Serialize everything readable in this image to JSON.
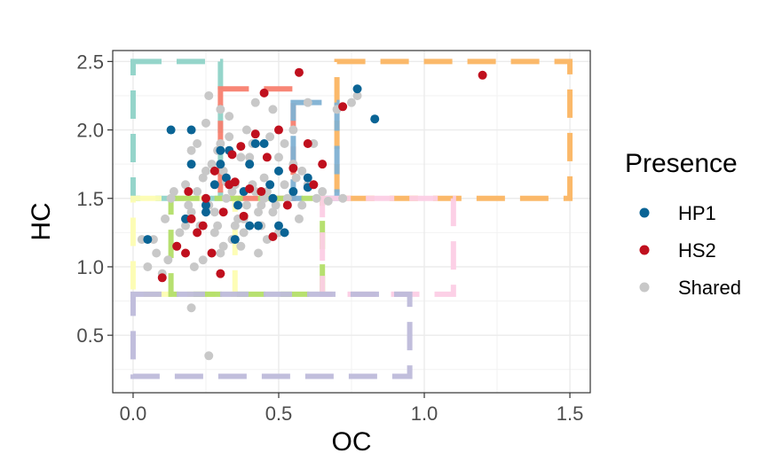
{
  "chart_data": {
    "type": "scatter",
    "xlabel": "OC",
    "ylabel": "HC",
    "xlim": [
      -0.07,
      1.57
    ],
    "ylim": [
      0.08,
      2.58
    ],
    "x_ticks": [
      0.0,
      0.5,
      1.0,
      1.5
    ],
    "x_tick_labels": [
      "0.0",
      "0.5",
      "1.0",
      "1.5"
    ],
    "y_ticks": [
      0.5,
      1.0,
      1.5,
      2.0,
      2.5
    ],
    "y_tick_labels": [
      "0.5",
      "1.0",
      "1.5",
      "2.0",
      "2.5"
    ],
    "grid": true,
    "legend": {
      "title": "Presence",
      "position": "right",
      "items": [
        {
          "label": "HP1",
          "color": "#0a6495"
        },
        {
          "label": "HS2",
          "color": "#c0101e"
        },
        {
          "label": "Shared",
          "color": "#c8c8c8"
        }
      ]
    },
    "series": [
      {
        "name": "Shared",
        "color": "#c8c8c8",
        "x": [
          0.26,
          0.12,
          0.2,
          0.03,
          0.18,
          0.26,
          0.35,
          0.4,
          0.45,
          0.3,
          0.38,
          0.28,
          0.22,
          0.5,
          0.55,
          0.48,
          0.42,
          0.33,
          0.25,
          0.6,
          0.62,
          0.58,
          0.7,
          0.75,
          0.77,
          0.65,
          0.05,
          0.08,
          0.1,
          0.15,
          0.2,
          0.24,
          0.36,
          0.44,
          0.52,
          0.47,
          0.31,
          0.29,
          0.39,
          0.34,
          0.27,
          0.21,
          0.16,
          0.43,
          0.53,
          0.57,
          0.46,
          0.41,
          0.37,
          0.32,
          0.23,
          0.19,
          0.14,
          0.11,
          0.07,
          0.28,
          0.35,
          0.42,
          0.49,
          0.56,
          0.3,
          0.26,
          0.33,
          0.4,
          0.45,
          0.38,
          0.31,
          0.24,
          0.18,
          0.13,
          0.36,
          0.44,
          0.5,
          0.55,
          0.6,
          0.48,
          0.41,
          0.34,
          0.27,
          0.22,
          0.29,
          0.37,
          0.43,
          0.39,
          0.32,
          0.25,
          0.2,
          0.46,
          0.52,
          0.58,
          0.63,
          0.67,
          0.72,
          0.3,
          0.35
        ],
        "y": [
          0.35,
          1.05,
          0.7,
          1.2,
          1.3,
          1.45,
          1.6,
          1.75,
          1.5,
          1.9,
          1.35,
          1.25,
          1.55,
          1.8,
          2.0,
          2.15,
          2.2,
          2.1,
          2.05,
          2.2,
          1.9,
          1.7,
          2.15,
          2.2,
          2.25,
          1.55,
          1.0,
          1.1,
          0.95,
          1.15,
          1.4,
          1.65,
          1.45,
          1.3,
          1.6,
          1.95,
          1.7,
          1.85,
          2.0,
          1.2,
          1.1,
          1.0,
          1.25,
          1.4,
          1.5,
          1.35,
          1.2,
          1.6,
          1.8,
          1.5,
          1.3,
          1.45,
          1.55,
          1.35,
          1.2,
          1.4,
          1.3,
          1.55,
          1.45,
          1.65,
          2.15,
          2.25,
          1.95,
          1.8,
          1.65,
          1.25,
          1.15,
          1.05,
          1.6,
          1.5,
          1.35,
          1.45,
          1.25,
          1.75,
          1.6,
          1.4,
          1.9,
          1.55,
          1.75,
          1.9,
          1.3,
          1.15,
          1.1,
          1.45,
          1.62,
          1.7,
          1.85,
          1.55,
          1.9,
          1.45,
          1.5,
          1.48,
          1.5,
          1.1,
          1.2
        ]
      },
      {
        "name": "HP1",
        "color": "#0a6495",
        "x": [
          0.05,
          0.13,
          0.2,
          0.25,
          0.3,
          0.35,
          0.4,
          0.45,
          0.5,
          0.55,
          0.6,
          0.77,
          0.83,
          0.28,
          0.33,
          0.38,
          0.43,
          0.48,
          0.18,
          0.25,
          0.32,
          0.4,
          0.52,
          0.2,
          0.36,
          0.47,
          0.3,
          0.42,
          0.5,
          0.6
        ],
        "y": [
          1.2,
          2.0,
          2.0,
          1.4,
          1.75,
          1.2,
          1.3,
          1.9,
          1.7,
          1.55,
          1.65,
          2.3,
          2.08,
          1.6,
          1.85,
          1.55,
          1.3,
          1.5,
          1.35,
          1.45,
          1.65,
          1.75,
          1.25,
          1.75,
          1.45,
          1.6,
          1.85,
          1.9,
          1.3,
          1.58
        ]
      },
      {
        "name": "HS2",
        "color": "#c0101e",
        "x": [
          0.57,
          0.72,
          1.2,
          0.45,
          0.34,
          0.4,
          0.5,
          0.6,
          0.65,
          0.25,
          0.2,
          0.15,
          0.1,
          0.3,
          0.35,
          0.44,
          0.53,
          0.28,
          0.22,
          0.18,
          0.38,
          0.46,
          0.62,
          0.33,
          0.27,
          0.48,
          0.42,
          0.55,
          0.24,
          0.37,
          0.31,
          0.19
        ],
        "y": [
          2.42,
          2.17,
          2.4,
          2.27,
          1.82,
          1.57,
          2.0,
          1.9,
          1.75,
          1.5,
          1.35,
          1.15,
          0.92,
          0.95,
          1.62,
          1.55,
          1.45,
          1.7,
          1.25,
          1.1,
          1.37,
          1.8,
          1.6,
          1.6,
          1.1,
          1.22,
          1.97,
          1.72,
          1.3,
          1.88,
          1.4,
          1.55
        ]
      }
    ],
    "regions": [
      {
        "x0": 0.0,
        "x1": 0.3,
        "y0": 1.5,
        "y1": 2.5,
        "color": "#8fd3c7"
      },
      {
        "x0": 0.7,
        "x1": 1.5,
        "y0": 1.5,
        "y1": 2.5,
        "color": "#fbb562"
      },
      {
        "x0": 0.3,
        "x1": 0.55,
        "y0": 1.5,
        "y1": 2.3,
        "color": "#f8806f"
      },
      {
        "x0": 0.55,
        "x1": 0.7,
        "y0": 1.5,
        "y1": 2.2,
        "color": "#7fb1d3"
      },
      {
        "x0": 0.0,
        "x1": 0.35,
        "y0": 0.8,
        "y1": 1.5,
        "color": "#fdfdb2"
      },
      {
        "x0": 0.13,
        "x1": 0.65,
        "y0": 0.8,
        "y1": 1.5,
        "color": "#b3de68"
      },
      {
        "x0": 0.65,
        "x1": 1.1,
        "y0": 0.8,
        "y1": 1.5,
        "color": "#fccde5"
      },
      {
        "x0": 0.0,
        "x1": 0.95,
        "y0": 0.2,
        "y1": 0.8,
        "color": "#bebada"
      }
    ]
  }
}
